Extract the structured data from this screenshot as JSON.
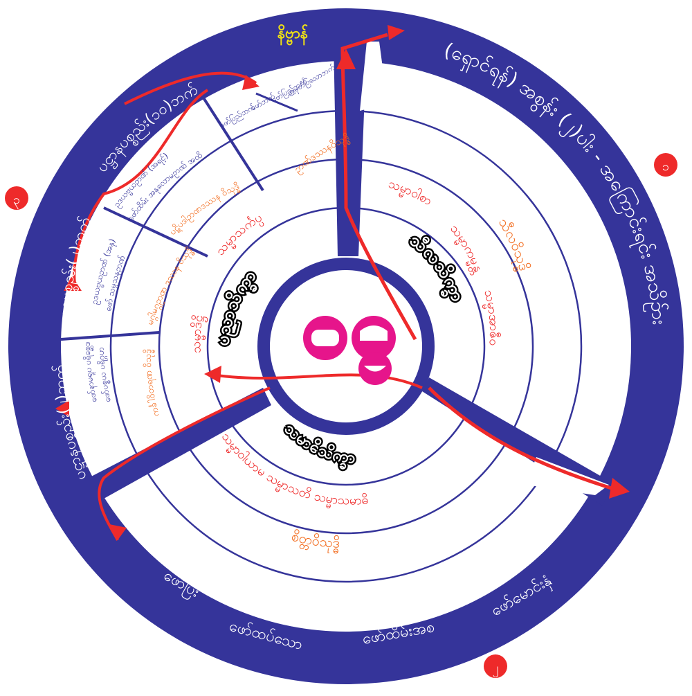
{
  "colors": {
    "navy": "#35349a",
    "red": "#ee2a2a",
    "orange": "#f26a1b",
    "magenta": "#e6158b",
    "yellow": "#f2e312",
    "white": "#ffffff"
  },
  "center": {
    "symbol": "ဝဋ်"
  },
  "outer_ring": {
    "right_arc": "(ရှောင်ရန်) အစွန်း (၂)ပါး  -  အကြောင်းရင်း အသိဥ်ား",
    "top_left_arc": "ပဋ္ဌာနပစ္စည်း(၁၀)ဘက်",
    "left_arc": "ပဋ္ဌာနပစ္စည်း(၂)ဘက်",
    "left_lower_arc": "ပဋ္ဌာနပစ္စည်း(၂)ဘက်",
    "bottom_labels": [
      "ဖော်ပြီး",
      "ဖော်ထပ်သော",
      "ဖော်ထိမ်းအစ",
      "ဖော်မောင်းနှံ"
    ]
  },
  "markers": {
    "one": "၁",
    "two": "၂",
    "three": "၃"
  },
  "top_tag": "နိဗ္ဗာန်",
  "top_small_labels": {
    "left": "ဖော်ပြည်ဘက်",
    "middle": "ဖော်ဘက်",
    "right": "ဖော်ပြည်ဘက်",
    "far_right": "အမှတ်ပြသောဘက်"
  },
  "top_segments": {
    "outer": "ဥာဏ်ဒဿနဝိသုဒ္ဓိ",
    "mid": "ပဋိပဒါဥာဏဒဿန ဝိသုဒ္ဓိ",
    "inner": "မဂ္ဂါမဂ္ဂဥာဏ ဒဿန ဝိသုဒ္ဓိ",
    "lowest": "ကင်္ခါဝိတရဏ ဝိသုဒ္ဓိ",
    "blue1": "ဥဒယဗ္ဗယဥာဏ် (အရင့်)",
    "blue2": "ဖော်ထိမ်း အနုလောမဥာဏ် အထိ",
    "blue3": "ဥဒယဗ္ဗယဥာဏ် (အနု)",
    "blue4": "ဖော် သမ္မသနဥာဏ်",
    "blue5": "ဖော်နာမရူပ ပရိစ္ဆေဒ",
    "blue6": "ဖော်ပစ္စယ ပရိဂ္ဂဟ"
  },
  "left_inner": {
    "big": "ပညာသိက္ခာ",
    "r1": "သမ္မာသင်္ကပ္ပ",
    "r2": "သမ္မာဒိဋ္ဌိ"
  },
  "right_inner": {
    "big": "သီလသိက္ခာ",
    "r1": "သမ္မာဝါစာ",
    "r2": "သမ္မာကမ္မန္တ",
    "r3": "သမ္မာအာဇီဝ",
    "orange": "သီလဝိသုဒ္ဓိ"
  },
  "bottom_inner": {
    "big": "သမာဓိသိက္ခာ",
    "items": [
      "သမ္မာဝါယာမ",
      "သမ္မာသတိ",
      "သမ္မာသမာဓိ"
    ],
    "orange": "စိတ္တဝိသုဒ္ဓိ"
  }
}
